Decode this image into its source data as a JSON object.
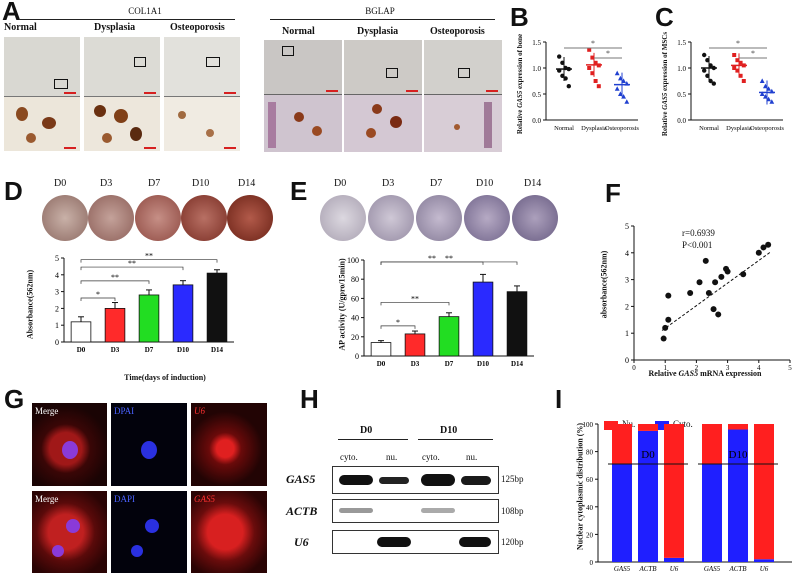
{
  "panels": {
    "A": {
      "label": "A",
      "col1a1": {
        "title": "COL1A1",
        "groups": [
          "Normal",
          "Dysplasia",
          "Osteoporosis"
        ]
      },
      "bglap": {
        "title": "BGLAP",
        "groups": [
          "Normal",
          "Dysplasia",
          "Osteoporosis"
        ]
      }
    },
    "B": {
      "label": "B",
      "ylabel_pre": "Relative ",
      "ylabel_gene": "GAS5",
      "ylabel_post": " expression of bone",
      "sig": [
        "*",
        "*"
      ],
      "categories": [
        "Normal",
        "Dysplasia",
        "Osteoporosis"
      ]
    },
    "C": {
      "label": "C",
      "ylabel_pre": "Relative ",
      "ylabel_gene": "GAS5",
      "ylabel_post": " expression of MSCs",
      "sig": [
        "*",
        "*"
      ],
      "categories": [
        "Normal",
        "Dysplasia",
        "Osteoporosis"
      ]
    },
    "D": {
      "label": "D",
      "days": [
        "D0",
        "D3",
        "D7",
        "D10",
        "D14"
      ],
      "ylabel": "Absorbance(562nm)",
      "xlabel": "Time(days of induction)",
      "sig": [
        "*",
        "**",
        "**",
        "**"
      ]
    },
    "E": {
      "label": "E",
      "days": [
        "D0",
        "D3",
        "D7",
        "D10",
        "D14"
      ],
      "ylabel": "AP activity (U/gpro/15min)",
      "sig": [
        "*",
        "**",
        "**",
        "**"
      ]
    },
    "F": {
      "label": "F",
      "r_text": "r=0.6939",
      "p_text": "P<0.001",
      "ylabel": "absorbance(562nm)",
      "xlabel_pre": "Relative ",
      "xlabel_gene": "GAS5",
      "xlabel_post": " mRNA expression"
    },
    "G": {
      "label": "G",
      "row1": [
        "Merge",
        "DPAI",
        "U6"
      ],
      "row2": [
        "Merge",
        "DAPI",
        "GAS5"
      ]
    },
    "H": {
      "label": "H",
      "groups": [
        "D0",
        "D10"
      ],
      "lanes": [
        "cyto.",
        "nu.",
        "cyto.",
        "nu."
      ],
      "genes": [
        "GAS5",
        "ACTB",
        "U6"
      ],
      "sizes": [
        "125bp",
        "108bp",
        "120bp"
      ]
    },
    "I": {
      "label": "I",
      "legend": [
        "Nu.",
        "Cyto."
      ],
      "groups": [
        "D0",
        "D10"
      ],
      "ylabel": "Nuclear cytoplasmic distribution (%)"
    }
  },
  "chart_data": [
    {
      "id": "B",
      "type": "scatter",
      "categories": [
        "Normal",
        "Dysplasia",
        "Osteoporosis"
      ],
      "ylim": [
        0.0,
        1.5
      ],
      "yticks": [
        "0.0",
        "0.5",
        "1.0",
        "1.5"
      ],
      "ylabel": "Relative GAS5 expression of bone",
      "colors": [
        "#111111",
        "#e02020",
        "#2040d0"
      ],
      "points": [
        [
          1.22,
          1.1,
          1.0,
          0.98,
          0.95,
          0.85,
          0.8,
          0.65
        ],
        [
          1.35,
          1.2,
          1.1,
          1.05,
          1.0,
          0.9,
          0.75,
          0.65
        ],
        [
          0.9,
          0.8,
          0.75,
          0.7,
          0.6,
          0.5,
          0.45,
          0.35
        ]
      ],
      "means": [
        0.98,
        1.06,
        0.68
      ]
    },
    {
      "id": "C",
      "type": "scatter",
      "categories": [
        "Normal",
        "Dysplasia",
        "Osteoporosis"
      ],
      "ylim": [
        0.0,
        1.5
      ],
      "yticks": [
        "0.0",
        "0.5",
        "1.0",
        "1.5"
      ],
      "ylabel": "Relative GAS5 expression of MSCs",
      "colors": [
        "#111111",
        "#e02020",
        "#2040d0"
      ],
      "points": [
        [
          1.25,
          1.15,
          1.05,
          1.0,
          0.95,
          0.85,
          0.75,
          0.7
        ],
        [
          1.25,
          1.15,
          1.1,
          1.05,
          1.0,
          0.95,
          0.85,
          0.75
        ],
        [
          0.75,
          0.65,
          0.6,
          0.55,
          0.5,
          0.45,
          0.4,
          0.35
        ]
      ],
      "means": [
        1.0,
        1.05,
        0.53
      ]
    },
    {
      "id": "D",
      "type": "bar",
      "categories": [
        "D0",
        "D3",
        "D7",
        "D10",
        "D14"
      ],
      "values": [
        1.2,
        2.0,
        2.8,
        3.4,
        4.1
      ],
      "errors": [
        0.3,
        0.35,
        0.3,
        0.25,
        0.2
      ],
      "ylim": [
        0,
        5
      ],
      "yticks": [
        "0",
        "1",
        "2",
        "3",
        "4",
        "5"
      ],
      "ylabel": "Absorbance(562nm)",
      "xlabel": "Time(days of induction)",
      "colors": [
        "#ffffff",
        "#ff2a2a",
        "#22dd22",
        "#2a2aff",
        "#111111"
      ]
    },
    {
      "id": "E",
      "type": "bar",
      "categories": [
        "D0",
        "D3",
        "D7",
        "D10",
        "D14"
      ],
      "values": [
        14,
        23,
        41,
        77,
        67
      ],
      "errors": [
        2,
        3,
        4,
        8,
        6
      ],
      "ylim": [
        0,
        100
      ],
      "yticks": [
        "0",
        "20",
        "40",
        "60",
        "80",
        "100"
      ],
      "ylabel": "AP activity (U/gpro/15min)",
      "colors": [
        "#ffffff",
        "#ff2a2a",
        "#22dd22",
        "#2a2aff",
        "#111111"
      ]
    },
    {
      "id": "F",
      "type": "scatter",
      "x": [
        0.95,
        1.0,
        1.1,
        1.1,
        1.8,
        2.1,
        2.3,
        2.4,
        2.55,
        2.6,
        2.7,
        2.8,
        2.95,
        3.0,
        3.5,
        4.0,
        4.15,
        4.3
      ],
      "y": [
        0.8,
        1.2,
        1.5,
        2.4,
        2.5,
        2.9,
        3.7,
        2.5,
        1.9,
        2.9,
        1.7,
        3.1,
        3.4,
        3.3,
        3.2,
        4.0,
        4.2,
        4.3
      ],
      "xlim": [
        0,
        5
      ],
      "ylim": [
        0,
        5
      ],
      "xticks": [
        "0",
        "1",
        "2",
        "3",
        "4",
        "5"
      ],
      "yticks": [
        "0",
        "1",
        "2",
        "3",
        "4",
        "5"
      ],
      "fit": [
        [
          0.9,
          1.1
        ],
        [
          4.4,
          4.05
        ]
      ],
      "xlabel": "Relative GAS5 mRNA expression",
      "ylabel": "absorbance(562nm)"
    },
    {
      "id": "I",
      "type": "bar",
      "categories": [
        "GAS5",
        "ACTB",
        "U6",
        "GAS5",
        "ACTB",
        "U6"
      ],
      "series": [
        {
          "name": "Cyto.",
          "values": [
            71,
            95,
            3,
            71,
            96,
            2
          ]
        },
        {
          "name": "Nu.",
          "values": [
            29,
            5,
            97,
            29,
            4,
            98
          ]
        }
      ],
      "ylim": [
        0,
        100
      ],
      "yticks": [
        "0",
        "20",
        "40",
        "60",
        "80",
        "100"
      ],
      "ylabel": "Nuclear cytoplasmic distribution (%)",
      "colors": {
        "Nu.": "#ff1f1f",
        "Cyto.": "#1f1fff"
      }
    }
  ]
}
